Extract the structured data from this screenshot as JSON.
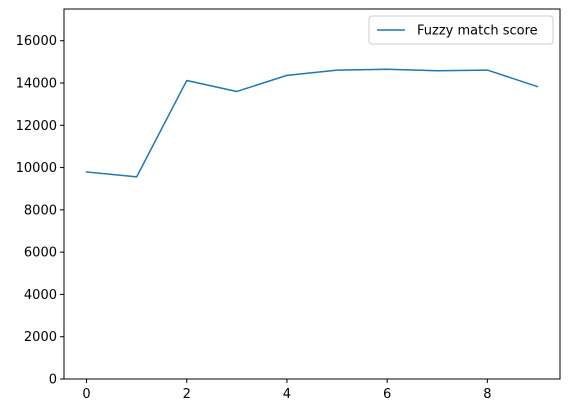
{
  "chart_data": {
    "type": "line",
    "title": "",
    "xlabel": "",
    "ylabel": "",
    "x": [
      0,
      1,
      2,
      3,
      4,
      5,
      6,
      7,
      8,
      9
    ],
    "series": [
      {
        "name": "Fuzzy match score",
        "color": "#1f77b4",
        "values": [
          9790,
          9560,
          14120,
          13600,
          14360,
          14610,
          14650,
          14580,
          14610,
          13830
        ]
      }
    ],
    "xlim": [
      -0.45,
      9.45
    ],
    "ylim": [
      0,
      17500
    ],
    "xticks": [
      0,
      2,
      4,
      6,
      8
    ],
    "yticks": [
      0,
      2000,
      4000,
      6000,
      8000,
      10000,
      12000,
      14000,
      16000
    ],
    "grid": false,
    "legend_position": "top-right"
  }
}
